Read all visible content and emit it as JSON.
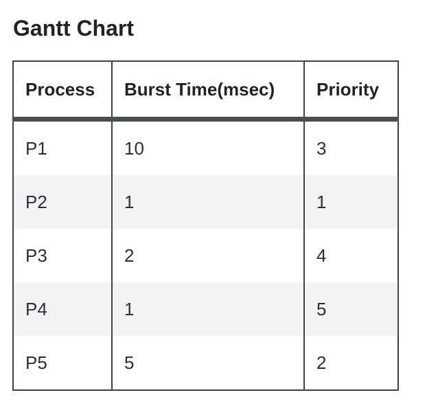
{
  "heading": "Gantt Chart",
  "table": {
    "headers": [
      "Process",
      "Burst Time(msec)",
      "Priority"
    ],
    "rows": [
      [
        "P1",
        "10",
        "3"
      ],
      [
        "P2",
        "1",
        "1"
      ],
      [
        "P3",
        "2",
        "4"
      ],
      [
        "P4",
        "1",
        "5"
      ],
      [
        "P5",
        "5",
        "2"
      ]
    ]
  }
}
